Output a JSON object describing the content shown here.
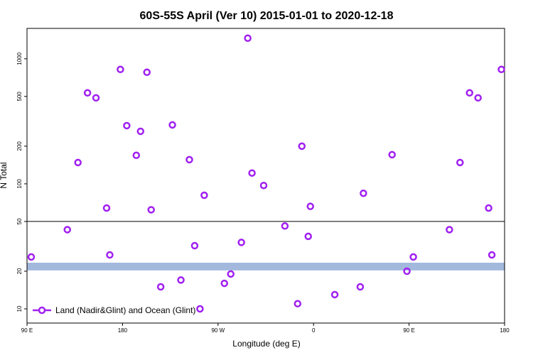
{
  "chart_data": {
    "type": "scatter",
    "title": "60S-55S April (Ver 10)   2015-01-01 to 2020-12-18",
    "x_label": "Longitude (deg E)",
    "y_label": "N Total",
    "xlim": [
      90,
      540
    ],
    "xticks": [
      {
        "value": 90,
        "label": "90 E"
      },
      180,
      {
        "value": 270,
        "label": "90 W"
      },
      {
        "value": 360,
        "label": "0"
      },
      {
        "value": 450,
        "label": "90 E"
      },
      {
        "value": 540,
        "label": "180"
      }
    ],
    "ylim": [
      7.7,
      1750
    ],
    "yticks": [
      10,
      20,
      50,
      100,
      200,
      500,
      1000
    ],
    "log_y": true,
    "legend": "bottom-left",
    "reference_line": 50,
    "shaded_band": {
      "range": [
        20.3,
        23.4
      ],
      "color": "#a3b8dd"
    },
    "series": [
      {
        "name": "Land (Nadir&Glint) and Ocean (Glint)",
        "color": "#a020f0",
        "x": [
          94,
          128,
          138,
          147,
          155,
          165,
          168,
          178,
          184,
          193,
          197,
          203,
          207,
          216,
          227,
          235,
          243,
          248,
          253,
          257,
          276,
          282,
          292,
          298,
          302,
          313,
          333,
          345,
          349,
          355,
          357,
          380,
          404,
          407,
          434,
          448,
          454,
          488,
          498,
          507,
          515,
          525,
          528,
          537
        ],
        "values": [
          26,
          43,
          148,
          534,
          487,
          64,
          27,
          822,
          292,
          169,
          263,
          780,
          62,
          15,
          296,
          17,
          156,
          32,
          10,
          81,
          16,
          19,
          34,
          1462,
          122,
          97,
          46,
          11,
          200,
          38,
          66,
          13,
          15,
          84,
          171,
          20,
          26,
          43,
          148,
          534,
          487,
          64,
          27,
          822
        ]
      }
    ]
  }
}
